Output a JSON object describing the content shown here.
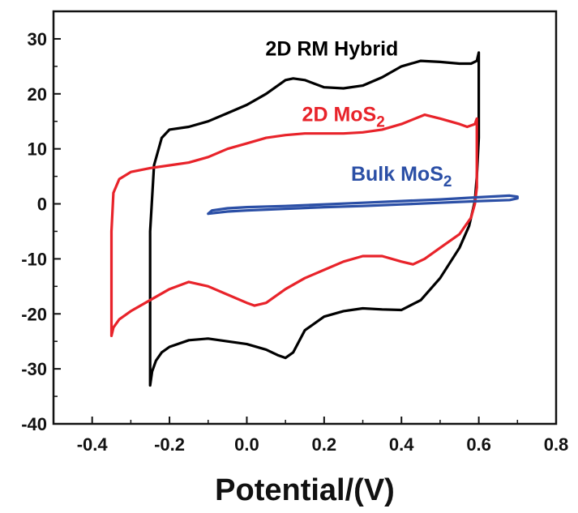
{
  "chart_data": {
    "type": "line",
    "title": "",
    "xlabel": "Potential/(V)",
    "ylabel": "",
    "xlim": [
      -0.5,
      0.8
    ],
    "ylim": [
      -40,
      35
    ],
    "x_ticks": [
      -0.4,
      -0.2,
      0.0,
      0.2,
      0.4,
      0.6,
      0.8
    ],
    "x_tick_labels": [
      "-0.4",
      "-0.2",
      "0.0",
      "0.2",
      "0.4",
      "0.6",
      "0.8"
    ],
    "y_ticks": [
      -40,
      -30,
      -20,
      -10,
      0,
      10,
      20,
      30
    ],
    "y_tick_labels": [
      "-40",
      "-30",
      "-20",
      "-10",
      "0",
      "10",
      "20",
      "30"
    ],
    "grid": false,
    "legend": "inline labels",
    "series": [
      {
        "name": "2D RM Hybrid",
        "label_main": "2D RM Hybrid",
        "label_sub": "",
        "color": "#000000",
        "points": [
          [
            -0.25,
            -33.0
          ],
          [
            -0.245,
            -30.5
          ],
          [
            -0.235,
            -28.5
          ],
          [
            -0.22,
            -27.0
          ],
          [
            -0.2,
            -26.0
          ],
          [
            -0.15,
            -24.8
          ],
          [
            -0.1,
            -24.5
          ],
          [
            -0.05,
            -25.0
          ],
          [
            0.0,
            -25.5
          ],
          [
            0.05,
            -26.5
          ],
          [
            0.08,
            -27.5
          ],
          [
            0.1,
            -28.0
          ],
          [
            0.12,
            -27.0
          ],
          [
            0.15,
            -23.0
          ],
          [
            0.2,
            -20.5
          ],
          [
            0.25,
            -19.5
          ],
          [
            0.3,
            -19.0
          ],
          [
            0.35,
            -19.2
          ],
          [
            0.4,
            -19.3
          ],
          [
            0.45,
            -17.5
          ],
          [
            0.5,
            -13.5
          ],
          [
            0.55,
            -8.0
          ],
          [
            0.575,
            -4.0
          ],
          [
            0.59,
            0.5
          ],
          [
            0.595,
            5.0
          ],
          [
            0.6,
            12.0
          ],
          [
            0.6,
            20.0
          ],
          [
            0.6,
            27.5
          ],
          [
            0.595,
            26.0
          ],
          [
            0.58,
            25.5
          ],
          [
            0.55,
            25.5
          ],
          [
            0.5,
            25.8
          ],
          [
            0.45,
            26.0
          ],
          [
            0.4,
            25.0
          ],
          [
            0.35,
            23.0
          ],
          [
            0.3,
            21.5
          ],
          [
            0.25,
            21.0
          ],
          [
            0.2,
            21.2
          ],
          [
            0.15,
            22.5
          ],
          [
            0.12,
            22.8
          ],
          [
            0.1,
            22.5
          ],
          [
            0.05,
            20.0
          ],
          [
            0.0,
            18.0
          ],
          [
            -0.05,
            16.5
          ],
          [
            -0.1,
            15.0
          ],
          [
            -0.15,
            14.0
          ],
          [
            -0.2,
            13.5
          ],
          [
            -0.22,
            12.0
          ],
          [
            -0.24,
            7.0
          ],
          [
            -0.25,
            -5.0
          ],
          [
            -0.25,
            -20.0
          ],
          [
            -0.25,
            -33.0
          ]
        ]
      },
      {
        "name": "2D MoS2",
        "label_main": "2D MoS",
        "label_sub": "2",
        "color": "#e8232a",
        "points": [
          [
            -0.35,
            -24.0
          ],
          [
            -0.345,
            -22.5
          ],
          [
            -0.33,
            -21.0
          ],
          [
            -0.3,
            -19.5
          ],
          [
            -0.25,
            -17.5
          ],
          [
            -0.2,
            -15.5
          ],
          [
            -0.15,
            -14.2
          ],
          [
            -0.1,
            -15.0
          ],
          [
            -0.05,
            -16.5
          ],
          [
            0.0,
            -18.0
          ],
          [
            0.02,
            -18.5
          ],
          [
            0.05,
            -18.0
          ],
          [
            0.1,
            -15.5
          ],
          [
            0.15,
            -13.5
          ],
          [
            0.2,
            -12.0
          ],
          [
            0.25,
            -10.5
          ],
          [
            0.3,
            -9.5
          ],
          [
            0.35,
            -9.5
          ],
          [
            0.4,
            -10.5
          ],
          [
            0.43,
            -11.0
          ],
          [
            0.46,
            -10.0
          ],
          [
            0.5,
            -8.0
          ],
          [
            0.55,
            -5.5
          ],
          [
            0.58,
            -2.5
          ],
          [
            0.59,
            0.0
          ],
          [
            0.595,
            3.0
          ],
          [
            0.595,
            8.0
          ],
          [
            0.595,
            15.5
          ],
          [
            0.59,
            14.5
          ],
          [
            0.57,
            14.0
          ],
          [
            0.55,
            14.5
          ],
          [
            0.5,
            15.5
          ],
          [
            0.46,
            16.2
          ],
          [
            0.4,
            14.5
          ],
          [
            0.35,
            13.5
          ],
          [
            0.3,
            13.0
          ],
          [
            0.25,
            12.8
          ],
          [
            0.2,
            12.8
          ],
          [
            0.15,
            12.8
          ],
          [
            0.1,
            12.5
          ],
          [
            0.05,
            12.0
          ],
          [
            0.0,
            11.0
          ],
          [
            -0.05,
            10.0
          ],
          [
            -0.1,
            8.5
          ],
          [
            -0.15,
            7.5
          ],
          [
            -0.2,
            7.0
          ],
          [
            -0.25,
            6.5
          ],
          [
            -0.3,
            5.8
          ],
          [
            -0.33,
            4.5
          ],
          [
            -0.345,
            2.0
          ],
          [
            -0.35,
            -5.0
          ],
          [
            -0.35,
            -15.0
          ],
          [
            -0.35,
            -24.0
          ]
        ]
      },
      {
        "name": "Bulk MoS2",
        "label_main": "Bulk MoS",
        "label_sub": "2",
        "color": "#2b4fa6",
        "points": [
          [
            -0.1,
            -1.8
          ],
          [
            -0.05,
            -1.4
          ],
          [
            0.0,
            -1.2
          ],
          [
            0.1,
            -0.9
          ],
          [
            0.2,
            -0.6
          ],
          [
            0.3,
            -0.4
          ],
          [
            0.4,
            -0.1
          ],
          [
            0.5,
            0.2
          ],
          [
            0.6,
            0.5
          ],
          [
            0.68,
            0.7
          ],
          [
            0.7,
            1.0
          ],
          [
            0.7,
            1.3
          ],
          [
            0.68,
            1.5
          ],
          [
            0.6,
            1.2
          ],
          [
            0.5,
            0.8
          ],
          [
            0.4,
            0.5
          ],
          [
            0.3,
            0.2
          ],
          [
            0.2,
            -0.1
          ],
          [
            0.1,
            -0.4
          ],
          [
            0.0,
            -0.6
          ],
          [
            -0.05,
            -0.8
          ],
          [
            -0.09,
            -1.2
          ],
          [
            -0.1,
            -1.8
          ]
        ]
      }
    ]
  }
}
